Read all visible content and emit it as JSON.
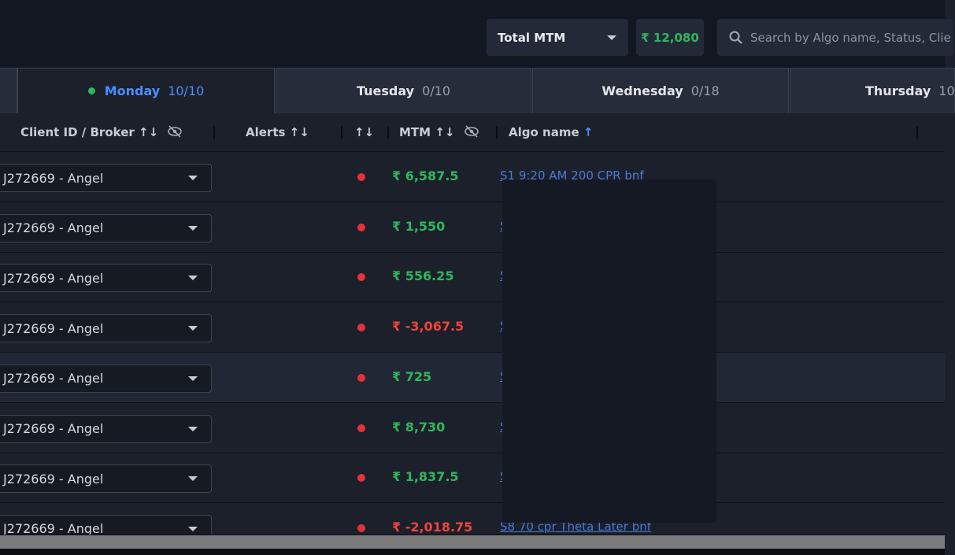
{
  "toolbar": {
    "mtm_selector": "Total MTM",
    "total_mtm": "₹ 12,080",
    "search_placeholder": "Search by Algo name, Status, Clie"
  },
  "tabs": [
    {
      "day": "Monday",
      "count": "10/10",
      "active": true
    },
    {
      "day": "Tuesday",
      "count": "0/10",
      "active": false
    },
    {
      "day": "Wednesday",
      "count": "0/18",
      "active": false
    },
    {
      "day": "Thursday",
      "count": "10",
      "active": false
    }
  ],
  "table": {
    "columns": [
      "Client ID / Broker",
      "Alerts",
      "MTM",
      "Algo name"
    ],
    "rows": [
      {
        "client": "J272669 - Angel",
        "mtm": "₹ 6,587.5",
        "color": "#2eb85c",
        "algo": "S1 9:20 AM 200 CPR bnf"
      },
      {
        "client": "J272669 - Angel",
        "mtm": "₹ 1,550",
        "color": "#2eb85c",
        "algo": "S"
      },
      {
        "client": "J272669 - Angel",
        "mtm": "₹ 556.25",
        "color": "#2eb85c",
        "algo": "S"
      },
      {
        "client": "J272669 - Angel",
        "mtm": "₹ -3,067.5",
        "color": "#f0453a",
        "algo": "S"
      },
      {
        "client": "J272669 - Angel",
        "mtm": "₹ 725",
        "color": "#2eb85c",
        "algo": "S"
      },
      {
        "client": "J272669 - Angel",
        "mtm": "₹ 8,730",
        "color": "#2eb85c",
        "algo": "S"
      },
      {
        "client": "J272669 - Angel",
        "mtm": "₹ 1,837.5",
        "color": "#2eb85c",
        "algo": "S"
      },
      {
        "client": "J272669 - Angel",
        "mtm": "₹ -2,018.75",
        "color": "#f0453a",
        "algo": "S8 70 cpr Theta Later bnf"
      }
    ]
  }
}
